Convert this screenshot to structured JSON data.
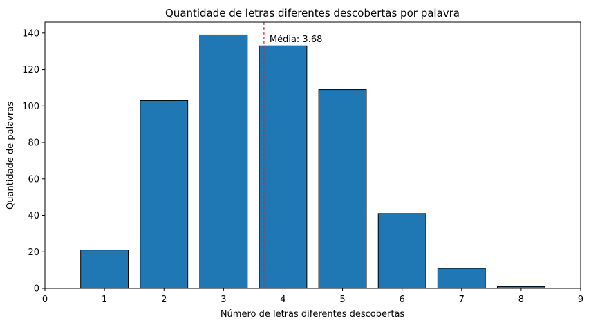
{
  "chart_data": {
    "type": "bar",
    "title": "Quantidade de letras diferentes descobertas por palavra",
    "xlabel": "Número de letras diferentes descobertas",
    "ylabel": "Quantidade de palavras",
    "categories": [
      1,
      2,
      3,
      4,
      5,
      6,
      7,
      8
    ],
    "values": [
      21,
      103,
      139,
      133,
      109,
      41,
      11,
      1
    ],
    "xlim": [
      0,
      9
    ],
    "ylim": [
      0,
      146
    ],
    "xticks": [
      0,
      1,
      2,
      3,
      4,
      5,
      6,
      7,
      8,
      9
    ],
    "yticks": [
      0,
      20,
      40,
      60,
      80,
      100,
      120,
      140
    ],
    "bar_color": "#1f77b4",
    "bar_edge_color": "#000000",
    "grid": false,
    "mean_line": {
      "value": 3.68,
      "label": "Média: 3.68",
      "color": "#d62728",
      "style": "dashed"
    }
  }
}
